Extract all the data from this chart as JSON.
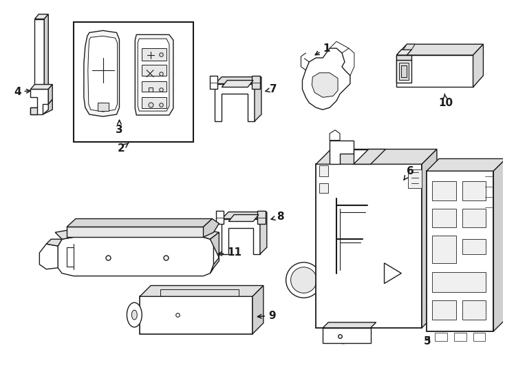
{
  "background_color": "#ffffff",
  "line_color": "#1a1a1a",
  "line_width": 1.0,
  "fig_width": 7.34,
  "fig_height": 5.4,
  "dpi": 100
}
